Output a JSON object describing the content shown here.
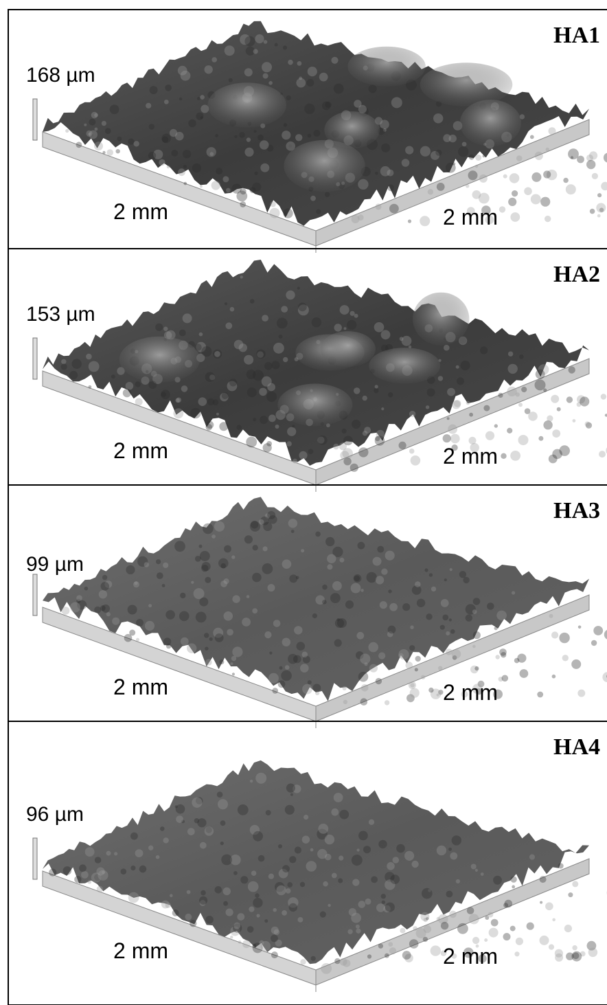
{
  "panels": [
    {
      "label": "HA1",
      "height": "168 µm",
      "x_length": "2 mm",
      "y_length": "2 mm"
    },
    {
      "label": "HA2",
      "height": "153 µm",
      "x_length": "2 mm",
      "y_length": "2 mm"
    },
    {
      "label": "HA3",
      "height": "99 µm",
      "x_length": "2 mm",
      "y_length": "2 mm"
    },
    {
      "label": "HA4",
      "height": "96 µm",
      "x_length": "2 mm",
      "y_length": "2 mm"
    }
  ]
}
